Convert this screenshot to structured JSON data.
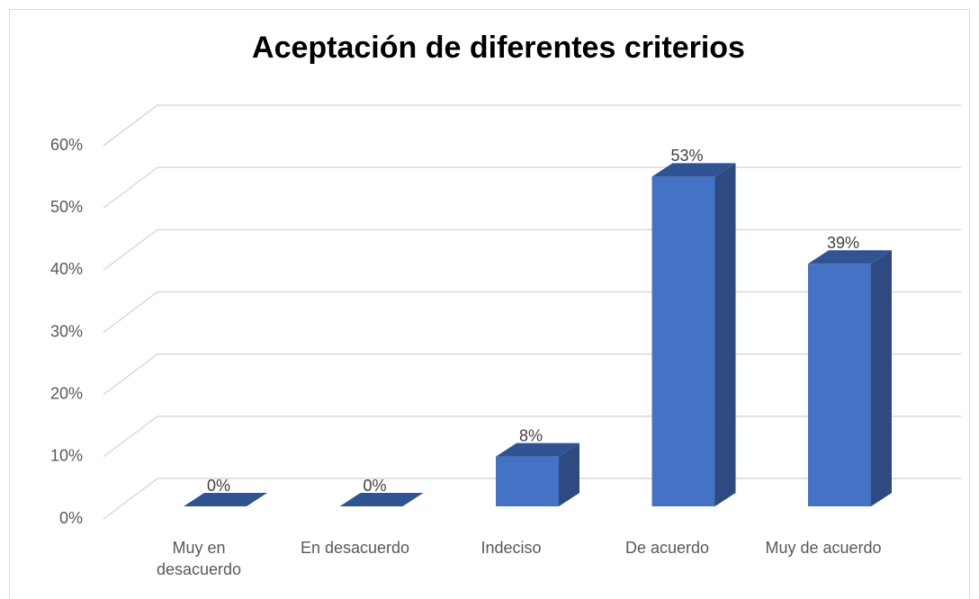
{
  "chart_data": {
    "type": "bar3d",
    "title": "Aceptación de diferentes criterios",
    "categories": [
      "Muy en desacuerdo",
      "En desacuerdo",
      "Indeciso",
      "De acuerdo",
      "Muy de acuerdo"
    ],
    "values": [
      0,
      0,
      8,
      53,
      39
    ],
    "value_labels": [
      "0%",
      "0%",
      "8%",
      "53%",
      "39%"
    ],
    "color": "#4472c4",
    "ylim": [
      0,
      60
    ],
    "yticks": [
      {
        "value": 0,
        "label": "0%"
      },
      {
        "value": 10,
        "label": "10%"
      },
      {
        "value": 20,
        "label": "20%"
      },
      {
        "value": 30,
        "label": "30%"
      },
      {
        "value": 40,
        "label": "40%"
      },
      {
        "value": 50,
        "label": "50%"
      },
      {
        "value": 60,
        "label": "60%"
      }
    ],
    "grid": true
  }
}
